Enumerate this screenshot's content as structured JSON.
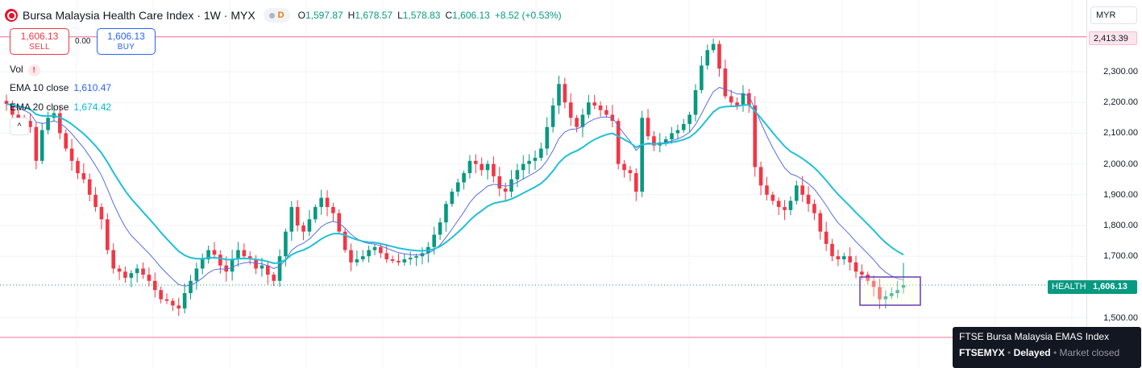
{
  "header": {
    "title": "Bursa Malaysia Health Care Index · 1W · MYX",
    "status_badge": "D",
    "ohlc": [
      {
        "k": "O",
        "v": "1,597.87"
      },
      {
        "k": "H",
        "v": "1,678.57"
      },
      {
        "k": "L",
        "v": "1,578.83"
      },
      {
        "k": "C",
        "v": "1,606.13"
      },
      {
        "k": "",
        "v": "+8.52 (+0.53%)"
      }
    ]
  },
  "trade": {
    "sell_price": "1,606.13",
    "sell_label": "SELL",
    "spread": "0.00",
    "buy_price": "1,606.13",
    "buy_label": "BUY"
  },
  "legend": {
    "vol_label": "Vol",
    "warn_icon": "!",
    "ema10_label": "EMA 10 close",
    "ema10_value": "1,610.47",
    "ema20_label": "EMA 20 close",
    "ema20_value": "1,674.42",
    "collapse_icon": "^"
  },
  "currency": "MYR",
  "price_scale": {
    "ticks": [
      "2,300.00",
      "2,200.00",
      "2,100.00",
      "2,000.00",
      "1,900.00",
      "1,800.00",
      "1,700.00",
      "1,500.00"
    ],
    "tick_values": [
      2300,
      2200,
      2100,
      2000,
      1900,
      1800,
      1700,
      1500
    ],
    "hline_label": "2,413.39",
    "hline_value": 2413.39,
    "symbol_tag": "HEALTH",
    "last_price_label": "1,606.13",
    "last_price": 1606.13
  },
  "tooltip": {
    "name": "FTSE Bursa Malaysia EMAS Index",
    "symbol": "FTSEMYX",
    "sep": "•",
    "status": "Delayed",
    "market": "Market closed"
  },
  "colors": {
    "up": "#089981",
    "down": "#f23645",
    "ema10": "#5b6ee1",
    "ema20": "#1fc0d6",
    "hline": "#f48fb1",
    "lastline": "#089981",
    "box": "#673ab7"
  },
  "chart_data": {
    "type": "candlestick",
    "interval": "1W",
    "closes": [
      2195,
      2160,
      2150,
      2140,
      2120,
      2010,
      2110,
      2150,
      2165,
      2100,
      2050,
      2010,
      1970,
      1950,
      1900,
      1860,
      1820,
      1720,
      1660,
      1650,
      1630,
      1645,
      1660,
      1640,
      1620,
      1590,
      1560,
      1555,
      1540,
      1530,
      1580,
      1620,
      1660,
      1690,
      1720,
      1705,
      1670,
      1650,
      1690,
      1720,
      1700,
      1690,
      1660,
      1670,
      1640,
      1620,
      1700,
      1780,
      1860,
      1800,
      1780,
      1820,
      1860,
      1890,
      1860,
      1840,
      1780,
      1720,
      1680,
      1690,
      1700,
      1720,
      1730,
      1710,
      1690,
      1685,
      1680,
      1690,
      1695,
      1700,
      1710,
      1730,
      1770,
      1810,
      1870,
      1910,
      1940,
      1970,
      2010,
      2000,
      1980,
      2000,
      1960,
      1920,
      1910,
      1950,
      1980,
      2000,
      2010,
      2020,
      2050,
      2120,
      2190,
      2260,
      2200,
      2150,
      2120,
      2160,
      2200,
      2190,
      2175,
      2160,
      2140,
      2000,
      1980,
      1970,
      1910,
      2150,
      2090,
      2060,
      2070,
      2080,
      2100,
      2110,
      2130,
      2160,
      2240,
      2320,
      2370,
      2390,
      2310,
      2220,
      2200,
      2190,
      2230,
      2190,
      1990,
      1930,
      1900,
      1880,
      1860,
      1850,
      1880,
      1930,
      1900,
      1870,
      1840,
      1780,
      1740,
      1700,
      1690,
      1700,
      1680,
      1650,
      1640,
      1620,
      1600,
      1560,
      1570,
      1580,
      1590,
      1606.13
    ],
    "ema10_close_last": 1610.47,
    "ema20_close_last": 1674.42,
    "hline": 2413.39,
    "last": 1606.13,
    "ylim": [
      1450,
      2440
    ]
  }
}
